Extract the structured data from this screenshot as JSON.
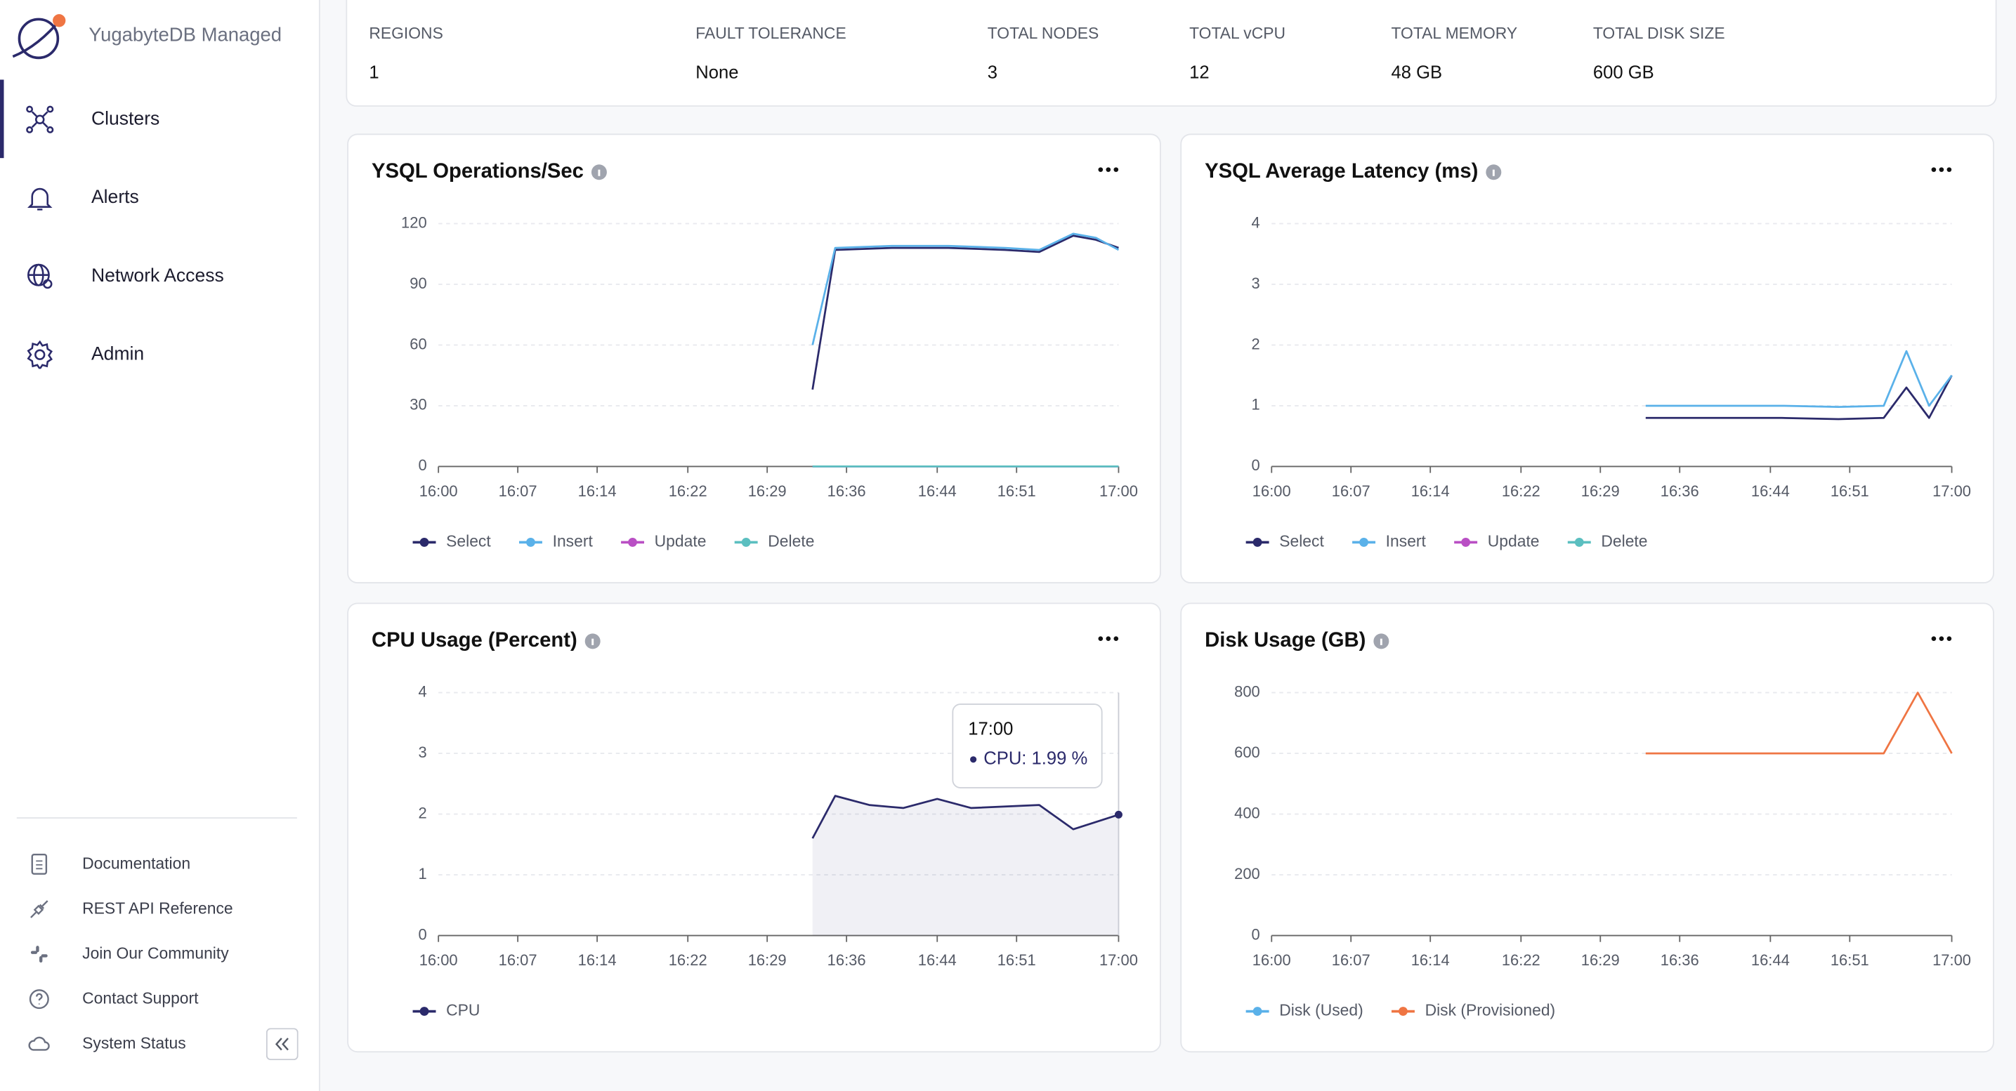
{
  "sidebar": {
    "brand": "YugabyteDB Managed",
    "nav": [
      "Clusters",
      "Alerts",
      "Network Access",
      "Admin"
    ],
    "links": [
      "Documentation",
      "REST API Reference",
      "Join Our Community",
      "Contact Support",
      "System Status"
    ]
  },
  "summary": {
    "items": [
      {
        "label": "REGIONS",
        "value": "1"
      },
      {
        "label": "FAULT TOLERANCE",
        "value": "None"
      },
      {
        "label": "TOTAL NODES",
        "value": "3"
      },
      {
        "label": "TOTAL vCPU",
        "value": "12"
      },
      {
        "label": "TOTAL MEMORY",
        "value": "48 GB"
      },
      {
        "label": "TOTAL DISK SIZE",
        "value": "600 GB"
      }
    ]
  },
  "chart_data": [
    {
      "type": "line",
      "title": "YSQL Operations/Sec",
      "x": [
        "16:33",
        "16:35",
        "16:40",
        "16:45",
        "16:50",
        "16:53",
        "16:56",
        "16:58",
        "17:00"
      ],
      "series": [
        {
          "name": "Select",
          "color": "#2b2a6b",
          "values": [
            38,
            107,
            108,
            108,
            107,
            106,
            114,
            112,
            108
          ]
        },
        {
          "name": "Insert",
          "color": "#5ab1e9",
          "values": [
            60,
            108,
            109,
            109,
            108,
            107,
            115,
            113,
            107
          ]
        },
        {
          "name": "Update",
          "color": "#b94fc4",
          "values": [
            0,
            0,
            0,
            0,
            0,
            0,
            0,
            0,
            0
          ]
        },
        {
          "name": "Delete",
          "color": "#5bbfc0",
          "values": [
            0,
            0,
            0,
            0,
            0,
            0,
            0,
            0,
            0
          ]
        }
      ],
      "xlim": [
        "16:00",
        "17:00"
      ],
      "xticks": [
        "16:00",
        "16:07",
        "16:14",
        "16:22",
        "16:29",
        "16:36",
        "16:44",
        "16:51",
        "17:00"
      ],
      "ylim": [
        0,
        120
      ],
      "yticks": [
        0,
        30,
        60,
        90,
        120
      ],
      "grid": true
    },
    {
      "type": "line",
      "title": "YSQL Average Latency (ms)",
      "x": [
        "16:33",
        "16:40",
        "16:45",
        "16:50",
        "16:54",
        "16:56",
        "16:58",
        "17:00"
      ],
      "series": [
        {
          "name": "Select",
          "color": "#2b2a6b",
          "values": [
            0.8,
            0.8,
            0.8,
            0.78,
            0.8,
            1.3,
            0.8,
            1.5
          ]
        },
        {
          "name": "Insert",
          "color": "#5ab1e9",
          "values": [
            1.0,
            1.0,
            1.0,
            0.98,
            1.0,
            1.9,
            1.0,
            1.5
          ]
        },
        {
          "name": "Update",
          "color": "#b94fc4",
          "values": [
            null,
            null,
            null,
            null,
            null,
            null,
            null,
            null
          ]
        },
        {
          "name": "Delete",
          "color": "#5bbfc0",
          "values": [
            null,
            null,
            null,
            null,
            null,
            null,
            null,
            null
          ]
        }
      ],
      "xlim": [
        "16:00",
        "17:00"
      ],
      "xticks": [
        "16:00",
        "16:07",
        "16:14",
        "16:22",
        "16:29",
        "16:36",
        "16:44",
        "16:51",
        "17:00"
      ],
      "ylim": [
        0,
        4
      ],
      "yticks": [
        0,
        1,
        2,
        3,
        4
      ],
      "grid": true
    },
    {
      "type": "area",
      "title": "CPU Usage (Percent)",
      "x": [
        "16:33",
        "16:35",
        "16:38",
        "16:41",
        "16:44",
        "16:47",
        "16:53",
        "16:56",
        "17:00"
      ],
      "series": [
        {
          "name": "CPU",
          "color": "#2b2a6b",
          "values": [
            1.6,
            2.3,
            2.15,
            2.1,
            2.25,
            2.1,
            2.15,
            1.75,
            1.99
          ]
        }
      ],
      "tooltip": {
        "title": "17:00",
        "label": "CPU: 1.99 %"
      },
      "xlim": [
        "16:00",
        "17:00"
      ],
      "xticks": [
        "16:00",
        "16:07",
        "16:14",
        "16:22",
        "16:29",
        "16:36",
        "16:44",
        "16:51",
        "17:00"
      ],
      "ylim": [
        0,
        4
      ],
      "yticks": [
        0,
        1,
        2,
        3,
        4
      ],
      "grid": true
    },
    {
      "type": "line",
      "title": "Disk Usage (GB)",
      "x": [
        "16:33",
        "16:40",
        "16:45",
        "16:50",
        "16:54",
        "16:57",
        "17:00"
      ],
      "series": [
        {
          "name": "Disk (Used)",
          "color": "#5ab1e9",
          "values": [
            null,
            null,
            null,
            null,
            null,
            null,
            null
          ]
        },
        {
          "name": "Disk (Provisioned)",
          "color": "#ef7543",
          "values": [
            600,
            600,
            600,
            600,
            600,
            800,
            600
          ]
        }
      ],
      "xlim": [
        "16:00",
        "17:00"
      ],
      "xticks": [
        "16:00",
        "16:07",
        "16:14",
        "16:22",
        "16:29",
        "16:36",
        "16:44",
        "16:51",
        "17:00"
      ],
      "ylim": [
        0,
        800
      ],
      "yticks": [
        0,
        200,
        400,
        600,
        800
      ],
      "grid": true
    }
  ]
}
